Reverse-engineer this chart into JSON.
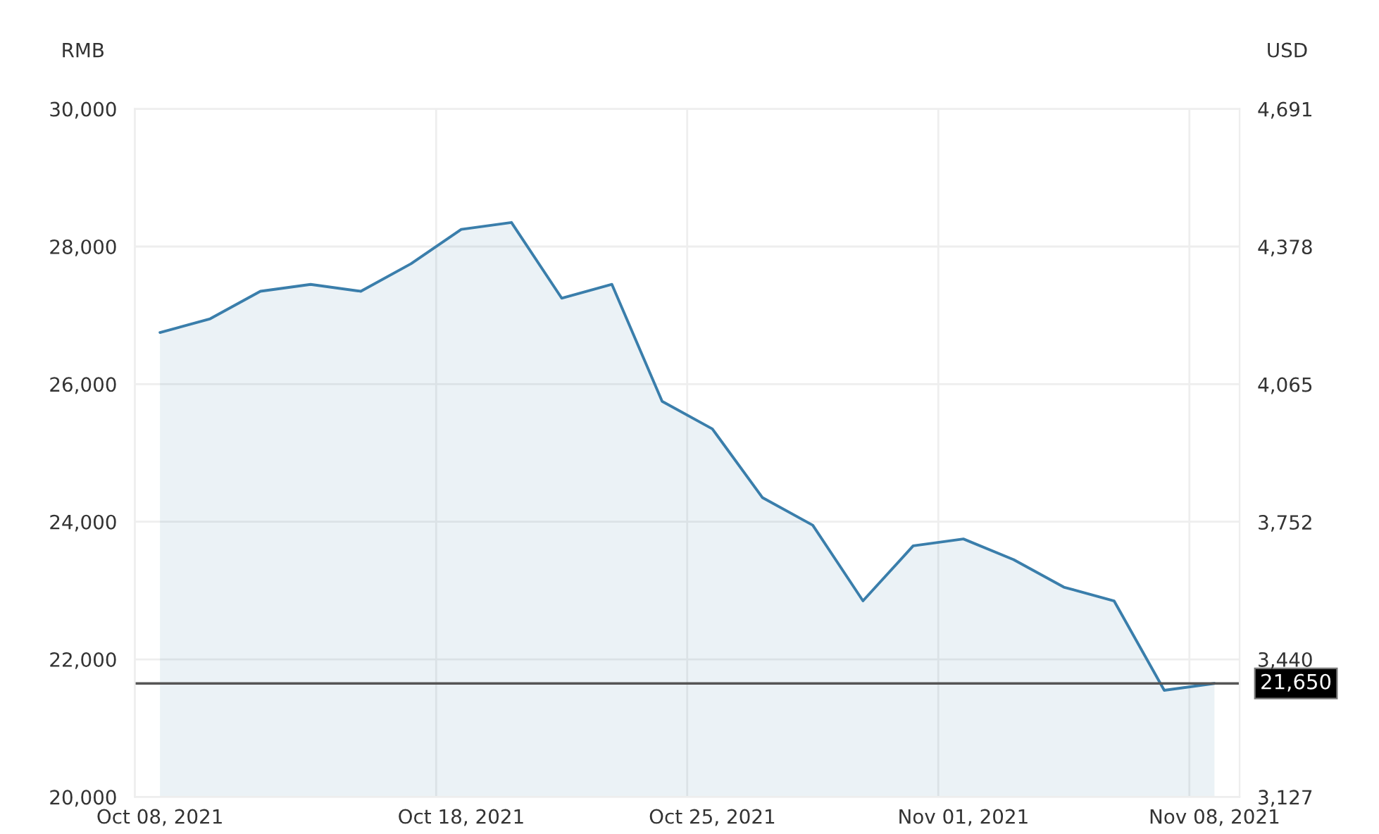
{
  "chart_data": {
    "type": "area",
    "ylabel": "RMB",
    "y2label": "USD",
    "categories": [
      "Oct 08, 2021",
      null,
      null,
      null,
      null,
      null,
      "Oct 18, 2021",
      null,
      null,
      null,
      null,
      "Oct 25, 2021",
      null,
      null,
      null,
      null,
      "Nov 01, 2021",
      null,
      null,
      null,
      null,
      "Nov 08, 2021"
    ],
    "series": [
      {
        "color": "#3a7eab",
        "values": [
          26750,
          26950,
          27350,
          27450,
          27350,
          27750,
          28250,
          28350,
          27250,
          27450,
          25750,
          25350,
          24350,
          23950,
          22850,
          23650,
          23750,
          23450,
          23050,
          22850,
          21550,
          21650
        ]
      }
    ],
    "ylim": [
      20000,
      30000
    ],
    "yticks": [
      {
        "value": 20000,
        "label": "20,000"
      },
      {
        "value": 22000,
        "label": "22,000"
      },
      {
        "value": 24000,
        "label": "24,000"
      },
      {
        "value": 26000,
        "label": "26,000"
      },
      {
        "value": 28000,
        "label": "28,000"
      },
      {
        "value": 30000,
        "label": "30,000"
      }
    ],
    "y2lim": [
      3127,
      4691
    ],
    "y2ticks": [
      {
        "value": 3127,
        "label": "3,127"
      },
      {
        "value": 3440,
        "label": "3,440"
      },
      {
        "value": 3752,
        "label": "3,752"
      },
      {
        "value": 4065,
        "label": "4,065"
      },
      {
        "value": 4378,
        "label": "4,378"
      },
      {
        "value": 4691,
        "label": "4,691"
      }
    ],
    "ref_lines": [
      {
        "axis": "y",
        "value": 21650,
        "label": "21,650",
        "color": "#555555"
      }
    ],
    "grid": true
  }
}
